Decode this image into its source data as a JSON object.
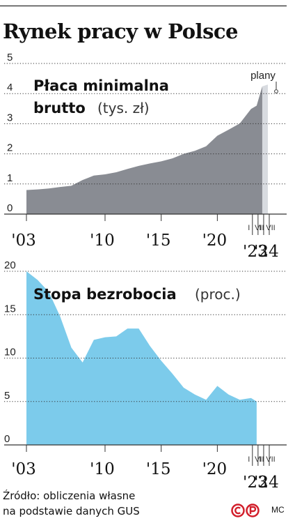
{
  "title": "Rynek pracy w Polsce",
  "source_line1": "Źródło: obliczenia własne",
  "source_line2": "na podstawie danych GUS",
  "logo_text": "©P",
  "credit": "MC",
  "colors": {
    "wage": "#898c93",
    "plan": "#d8dbe0",
    "unemp": "#7ccbeb",
    "grid": "#333333"
  },
  "chart_data": [
    {
      "type": "area",
      "title_bold_1": "Płaca minimalna",
      "title_bold_2": "brutto",
      "title_unit": "(tys. zł)",
      "plan_label": "plany",
      "ylim": [
        0,
        5
      ],
      "y_ticks": [
        "0",
        "1",
        "2",
        "3",
        "4",
        "5"
      ],
      "x_ticks": [
        "'03",
        "'10",
        "'15",
        "'20"
      ],
      "sub_ticks": [
        "I",
        "VII",
        "I",
        "VII"
      ],
      "sub_years": [
        "'23",
        "'24"
      ],
      "series": [
        {
          "values": [
            {
              "x": 2003.0,
              "y": 0.8
            },
            {
              "x": 2004.0,
              "y": 0.82
            },
            {
              "x": 2005.0,
              "y": 0.85
            },
            {
              "x": 2006.0,
              "y": 0.9
            },
            {
              "x": 2007.0,
              "y": 0.94
            },
            {
              "x": 2008.0,
              "y": 1.13
            },
            {
              "x": 2009.0,
              "y": 1.28
            },
            {
              "x": 2010.0,
              "y": 1.32
            },
            {
              "x": 2011.0,
              "y": 1.39
            },
            {
              "x": 2012.0,
              "y": 1.5
            },
            {
              "x": 2013.0,
              "y": 1.6
            },
            {
              "x": 2014.0,
              "y": 1.68
            },
            {
              "x": 2015.0,
              "y": 1.75
            },
            {
              "x": 2016.0,
              "y": 1.85
            },
            {
              "x": 2017.0,
              "y": 2.0
            },
            {
              "x": 2018.0,
              "y": 2.1
            },
            {
              "x": 2019.0,
              "y": 2.25
            },
            {
              "x": 2020.0,
              "y": 2.6
            },
            {
              "x": 2021.0,
              "y": 2.8
            },
            {
              "x": 2022.0,
              "y": 3.01
            },
            {
              "x": 2023.0,
              "y": 3.49
            },
            {
              "x": 2023.5,
              "y": 3.6
            },
            {
              "x": 2024.0,
              "y": 4.24
            },
            {
              "x": 2024.5,
              "y": 4.3
            }
          ],
          "planned_from": 2024.0
        }
      ]
    },
    {
      "type": "area",
      "title_bold": "Stopa bezrobocia",
      "title_unit": "(proc.)",
      "ylim": [
        0,
        20
      ],
      "y_ticks": [
        "0",
        "5",
        "10",
        "15",
        "20"
      ],
      "x_ticks": [
        "'03",
        "'10",
        "'15",
        "'20"
      ],
      "sub_ticks": [
        "I",
        "VII",
        "I",
        "VII"
      ],
      "sub_years": [
        "'23",
        "'24"
      ],
      "series": [
        {
          "values": [
            {
              "x": 2003.0,
              "y": 20.0
            },
            {
              "x": 2004.0,
              "y": 19.0
            },
            {
              "x": 2005.0,
              "y": 17.6
            },
            {
              "x": 2006.0,
              "y": 14.8
            },
            {
              "x": 2007.0,
              "y": 11.2
            },
            {
              "x": 2008.0,
              "y": 9.5
            },
            {
              "x": 2009.0,
              "y": 12.1
            },
            {
              "x": 2010.0,
              "y": 12.4
            },
            {
              "x": 2011.0,
              "y": 12.5
            },
            {
              "x": 2012.0,
              "y": 13.4
            },
            {
              "x": 2013.0,
              "y": 13.4
            },
            {
              "x": 2014.0,
              "y": 11.4
            },
            {
              "x": 2015.0,
              "y": 9.7
            },
            {
              "x": 2016.0,
              "y": 8.2
            },
            {
              "x": 2017.0,
              "y": 6.6
            },
            {
              "x": 2018.0,
              "y": 5.8
            },
            {
              "x": 2019.0,
              "y": 5.2
            },
            {
              "x": 2020.0,
              "y": 6.8
            },
            {
              "x": 2021.0,
              "y": 5.8
            },
            {
              "x": 2022.0,
              "y": 5.2
            },
            {
              "x": 2023.0,
              "y": 5.4
            },
            {
              "x": 2023.5,
              "y": 5.0
            }
          ]
        }
      ]
    }
  ]
}
